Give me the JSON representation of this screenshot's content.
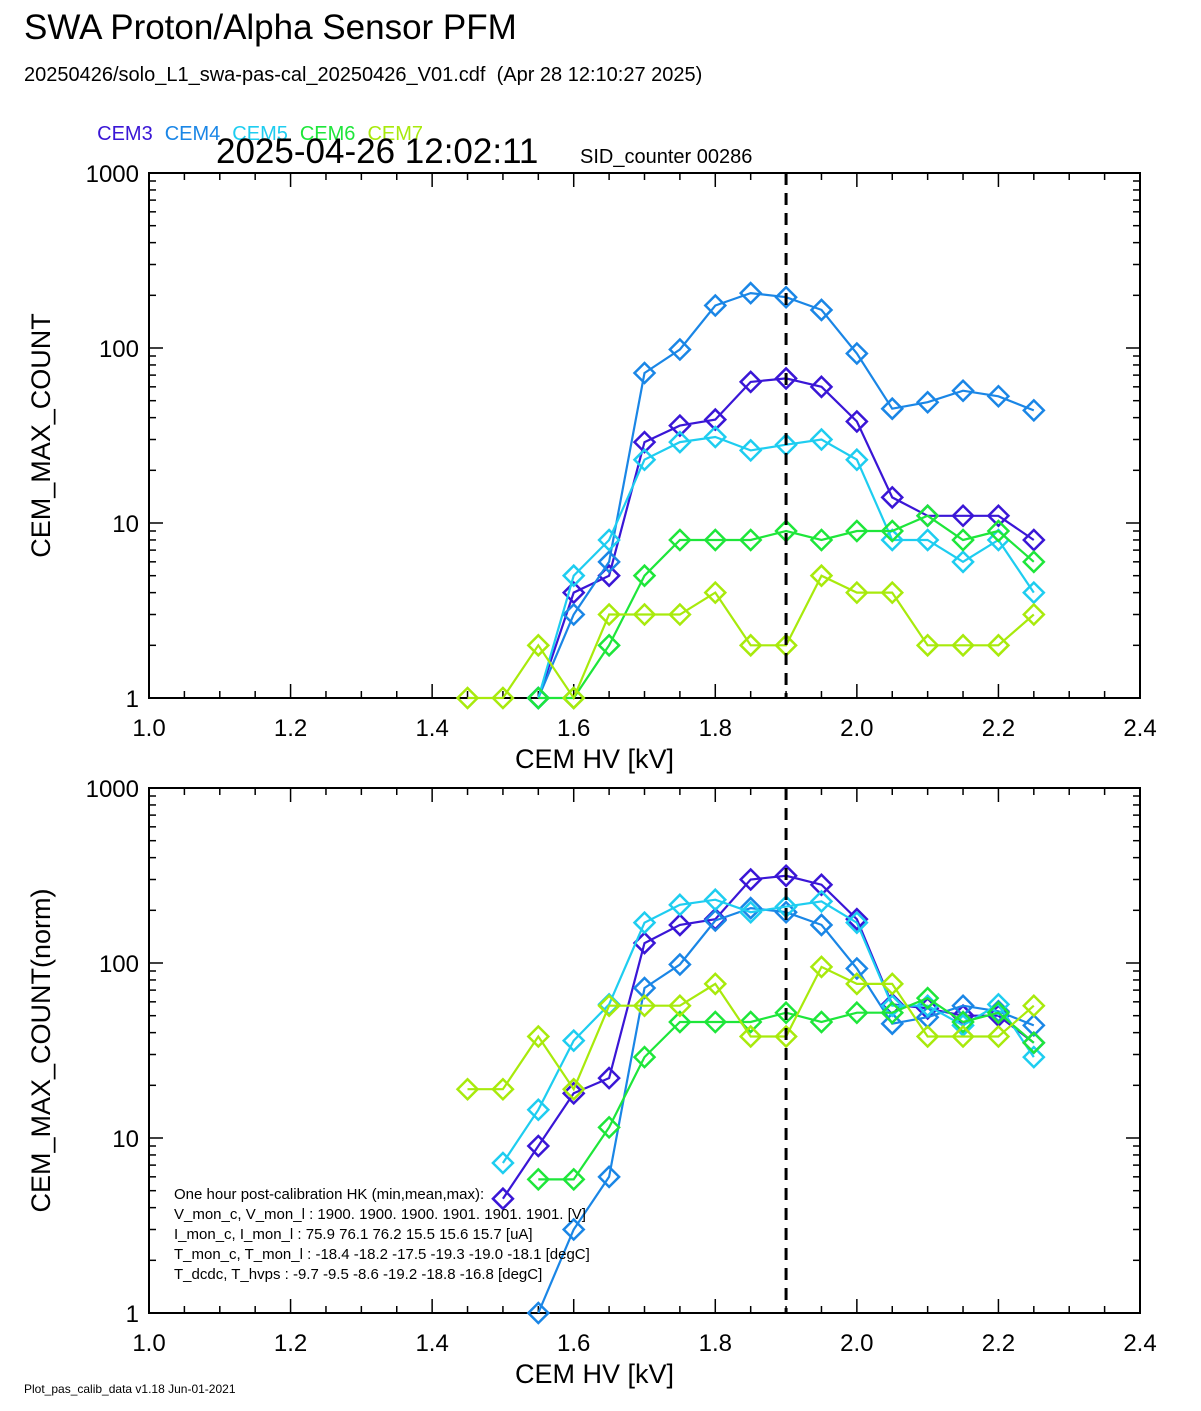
{
  "header": {
    "title": "SWA Proton/Alpha Sensor PFM",
    "subtitle": "20250426/solo_L1_swa-pas-cal_20250426_V01.cdf  (Apr 28 12:10:27 2025)",
    "timestamp": "2025-04-26 12:02:11",
    "sid_counter": "SID_counter 00286"
  },
  "legend": [
    {
      "name": "CEM3",
      "color": "#3a16d6"
    },
    {
      "name": "CEM4",
      "color": "#1a86e6"
    },
    {
      "name": "CEM5",
      "color": "#1ecdf0"
    },
    {
      "name": "CEM6",
      "color": "#1ee63a"
    },
    {
      "name": "CEM7",
      "color": "#a8ea0c"
    }
  ],
  "hk_table": [
    "One hour post-calibration HK (min,mean,max):",
    "V_mon_c, V_mon_l :   1900.  1900.  1900.      1901.  1901.  1901. [V]",
    "I_mon_c,  I_mon_l :    75.9   76.1   76.2        15.5   15.6   15.7  [uA]",
    "T_mon_c, T_mon_l :   -18.4  -18.2  -17.5      -19.3  -19.0  -18.1  [degC]",
    "T_dcdc,    T_hvps :     -9.7   -9.5   -8.6        -19.2  -18.8  -16.8  [degC]"
  ],
  "footer": "Plot_pas_calib_data v1.18 Jun-01-2021",
  "chart_data": [
    {
      "type": "line",
      "xlabel": "CEM HV [kV]",
      "ylabel": "CEM_MAX_COUNT",
      "xlim": [
        1.0,
        2.4
      ],
      "ylim": [
        1,
        1000
      ],
      "yscale": "log",
      "xticks": [
        "1.0",
        "1.2",
        "1.4",
        "1.6",
        "1.8",
        "2.0",
        "2.2",
        "2.4"
      ],
      "yticks": [
        "1",
        "10",
        "100",
        "1000"
      ],
      "vline": 1.9,
      "series": [
        {
          "name": "CEM3",
          "color": "#3a16d6",
          "x": [
            1.55,
            1.6,
            1.65,
            1.7,
            1.75,
            1.8,
            1.85,
            1.9,
            1.95,
            2.0,
            2.05,
            2.1,
            2.15,
            2.2,
            2.25
          ],
          "y": [
            1,
            4,
            5,
            29,
            36,
            39,
            64,
            67,
            60,
            38,
            14,
            11,
            11,
            11,
            8
          ]
        },
        {
          "name": "CEM4",
          "color": "#1a86e6",
          "x": [
            1.55,
            1.6,
            1.65,
            1.7,
            1.75,
            1.8,
            1.85,
            1.9,
            1.95,
            2.0,
            2.05,
            2.1,
            2.15,
            2.2,
            2.25
          ],
          "y": [
            1,
            3,
            6,
            72,
            98,
            175,
            206,
            195,
            165,
            93,
            45,
            49,
            57,
            53,
            44
          ]
        },
        {
          "name": "CEM5",
          "color": "#1ecdf0",
          "x": [
            1.55,
            1.6,
            1.65,
            1.7,
            1.75,
            1.8,
            1.85,
            1.9,
            1.95,
            2.0,
            2.05,
            2.1,
            2.15,
            2.2,
            2.25
          ],
          "y": [
            1,
            5,
            8,
            23,
            29,
            31,
            26,
            28,
            30,
            23,
            8,
            8,
            6,
            8,
            4
          ]
        },
        {
          "name": "CEM6",
          "color": "#1ee63a",
          "x": [
            1.55,
            1.6,
            1.65,
            1.7,
            1.75,
            1.8,
            1.85,
            1.9,
            1.95,
            2.0,
            2.05,
            2.1,
            2.15,
            2.2,
            2.25
          ],
          "y": [
            1,
            1,
            2,
            5,
            8,
            8,
            8,
            9,
            8,
            9,
            9,
            11,
            8,
            9,
            6
          ]
        },
        {
          "name": "CEM7",
          "color": "#a8ea0c",
          "x": [
            1.45,
            1.5,
            1.55,
            1.6,
            1.65,
            1.7,
            1.75,
            1.8,
            1.85,
            1.9,
            1.95,
            2.0,
            2.05,
            2.1,
            2.15,
            2.2,
            2.25
          ],
          "y": [
            1,
            1,
            2,
            1,
            3,
            3,
            3,
            4,
            2,
            2,
            5,
            4,
            4,
            2,
            2,
            2,
            3
          ]
        }
      ]
    },
    {
      "type": "line",
      "xlabel": "CEM HV [kV]",
      "ylabel": "CEM_MAX_COUNT(norm)",
      "xlim": [
        1.0,
        2.4
      ],
      "ylim": [
        1,
        1000
      ],
      "yscale": "log",
      "xticks": [
        "1.0",
        "1.2",
        "1.4",
        "1.6",
        "1.8",
        "2.0",
        "2.2",
        "2.4"
      ],
      "yticks": [
        "1",
        "10",
        "100",
        "1000"
      ],
      "vline": 1.9,
      "series": [
        {
          "name": "CEM3",
          "color": "#3a16d6",
          "x": [
            1.5,
            1.55,
            1.6,
            1.65,
            1.7,
            1.75,
            1.8,
            1.85,
            1.9,
            1.95,
            2.0,
            2.05,
            2.1,
            2.15,
            2.2,
            2.25
          ],
          "y": [
            4.5,
            9,
            18,
            22,
            130,
            165,
            178,
            300,
            315,
            280,
            178,
            58,
            55,
            50,
            50,
            35
          ]
        },
        {
          "name": "CEM4",
          "color": "#1a86e6",
          "x": [
            1.55,
            1.6,
            1.65,
            1.7,
            1.75,
            1.8,
            1.85,
            1.9,
            1.95,
            2.0,
            2.05,
            2.1,
            2.15,
            2.2,
            2.25
          ],
          "y": [
            1,
            3,
            6,
            72,
            98,
            175,
            206,
            195,
            165,
            93,
            45,
            49,
            57,
            53,
            44
          ]
        },
        {
          "name": "CEM5",
          "color": "#1ecdf0",
          "x": [
            1.5,
            1.55,
            1.6,
            1.65,
            1.7,
            1.75,
            1.8,
            1.85,
            1.9,
            1.95,
            2.0,
            2.05,
            2.1,
            2.15,
            2.2,
            2.25
          ],
          "y": [
            7.2,
            14.5,
            36,
            58,
            170,
            215,
            230,
            195,
            210,
            225,
            170,
            57,
            57,
            44,
            58,
            29
          ]
        },
        {
          "name": "CEM6",
          "color": "#1ee63a",
          "x": [
            1.55,
            1.6,
            1.65,
            1.7,
            1.75,
            1.8,
            1.85,
            1.9,
            1.95,
            2.0,
            2.05,
            2.1,
            2.15,
            2.2,
            2.25
          ],
          "y": [
            5.8,
            5.8,
            11.5,
            29,
            46,
            46,
            46,
            52,
            46,
            52,
            52,
            63,
            46,
            52,
            35
          ]
        },
        {
          "name": "CEM7",
          "color": "#a8ea0c",
          "x": [
            1.45,
            1.5,
            1.55,
            1.6,
            1.65,
            1.7,
            1.75,
            1.8,
            1.85,
            1.9,
            1.95,
            2.0,
            2.05,
            2.1,
            2.15,
            2.2,
            2.25
          ],
          "y": [
            19,
            19,
            38,
            19,
            57,
            57,
            57,
            76,
            38,
            38,
            95,
            76,
            76,
            38,
            38,
            38,
            57
          ]
        }
      ]
    }
  ]
}
